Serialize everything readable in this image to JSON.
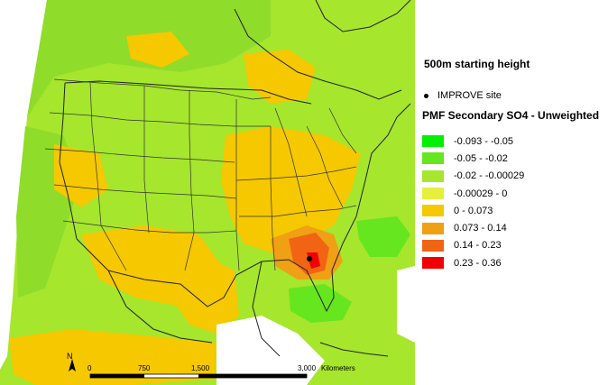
{
  "map": {
    "title": "500m starting height",
    "site_legend": "IMPROVE site",
    "legend_title": "PMF Secondary SO4 - Unweighted",
    "legend_items": [
      {
        "label": "-0.093 - -0.05",
        "color": "#00f000"
      },
      {
        "label": "-0.05 - -0.02",
        "color": "#66e61e"
      },
      {
        "label": "-0.02 - -0.00029",
        "color": "#a6e62d"
      },
      {
        "label": "-0.00029 - 0",
        "color": "#e6f03c"
      },
      {
        "label": "0 - 0.073",
        "color": "#f5c800"
      },
      {
        "label": "0.073 - 0.14",
        "color": "#f0a014"
      },
      {
        "label": "0.14 - 0.23",
        "color": "#f06414"
      },
      {
        "label": "0.23 - 0.36",
        "color": "#f00000"
      }
    ],
    "north_label": "N",
    "scale": {
      "ticks": [
        "0",
        "750",
        "1,500",
        "3,000"
      ],
      "unit": "Kilometers"
    }
  }
}
